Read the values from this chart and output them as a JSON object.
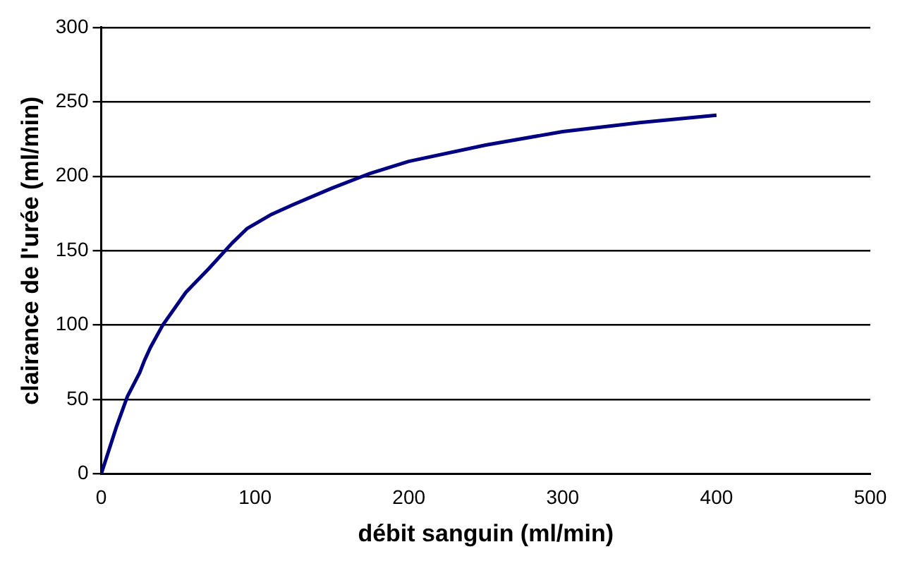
{
  "chart_data": {
    "type": "line",
    "xlabel": "débit sanguin (ml/min)",
    "ylabel": "clairance de l'urée (ml/min)",
    "x": [
      0,
      10,
      17,
      25,
      28,
      32,
      40,
      55,
      70,
      85,
      95,
      110,
      125,
      150,
      175,
      200,
      250,
      300,
      350,
      400
    ],
    "series": [
      {
        "color": "#000080",
        "values": [
          0,
          32,
          52,
          68,
          76,
          85,
          100,
          122,
          138,
          155,
          165,
          174,
          181,
          192,
          202,
          210,
          221,
          230,
          236,
          241
        ]
      }
    ],
    "xlim": [
      0,
      500
    ],
    "xticks": [
      0,
      100,
      200,
      300,
      400,
      500
    ],
    "ylim": [
      0,
      300
    ],
    "yticks": [
      0,
      50,
      100,
      150,
      200,
      250,
      300
    ],
    "grid": "y",
    "legend": false,
    "marker": "none",
    "line_style": "solid"
  }
}
